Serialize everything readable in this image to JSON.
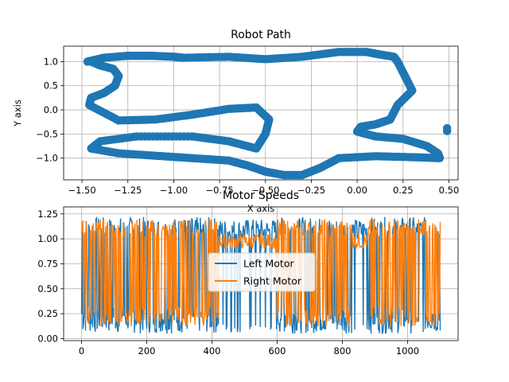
{
  "chart_data": [
    {
      "type": "scatter",
      "title": "Robot Path",
      "xlabel": "X axis",
      "ylabel": "Y axis",
      "xlim": [
        -1.6,
        0.55
      ],
      "ylim": [
        -1.45,
        1.32
      ],
      "xticks": [
        -1.5,
        -1.25,
        -1.0,
        -0.75,
        -0.5,
        -0.25,
        0.0,
        0.25,
        0.5
      ],
      "xtick_labels": [
        "−1.50",
        "−1.25",
        "−1.00",
        "−0.75",
        "−0.50",
        "−0.25",
        "0.00",
        "0.25",
        "0.50"
      ],
      "yticks": [
        -1.0,
        -0.5,
        0.0,
        0.5,
        1.0
      ],
      "ytick_labels": [
        "−1.0",
        "−0.5",
        "0.0",
        "0.5",
        "1.0"
      ],
      "grid": true,
      "color": "#1f77b4",
      "points": {
        "x": [
          -1.47,
          -1.38,
          -1.25,
          -1.12,
          -1.0,
          -0.95,
          -0.7,
          -0.5,
          -0.3,
          -0.1,
          0.05,
          0.12,
          0.2,
          0.22,
          0.26,
          0.3,
          0.22,
          0.18,
          0.1,
          0.02,
          0.0,
          0.1,
          0.25,
          0.38,
          0.44,
          0.45,
          0.3,
          0.1,
          -0.1,
          -0.2,
          -0.3,
          -0.4,
          -0.5,
          -0.6,
          -0.7,
          -0.9,
          -1.1,
          -1.3,
          -1.45,
          -1.4,
          -1.2,
          -0.9,
          -0.7,
          -0.55,
          -0.5,
          -0.48,
          -0.55,
          -0.7,
          -0.9,
          -1.1,
          -1.3,
          -1.46,
          -1.45,
          -1.38,
          -1.32,
          -1.3,
          -1.33,
          -1.4,
          -1.45
        ],
        "y": [
          1.0,
          1.08,
          1.12,
          1.12,
          1.1,
          1.08,
          1.1,
          1.05,
          1.1,
          1.2,
          1.2,
          1.15,
          1.1,
          1.0,
          0.7,
          0.4,
          0.1,
          -0.2,
          -0.3,
          -0.35,
          -0.45,
          -0.55,
          -0.6,
          -0.75,
          -0.9,
          -1.0,
          -0.98,
          -0.96,
          -1.0,
          -1.2,
          -1.35,
          -1.35,
          -1.28,
          -1.15,
          -1.05,
          -1.0,
          -0.95,
          -0.9,
          -0.8,
          -0.65,
          -0.55,
          -0.55,
          -0.65,
          -0.8,
          -0.5,
          -0.2,
          0.05,
          0.02,
          -0.1,
          -0.2,
          -0.22,
          0.1,
          0.25,
          0.35,
          0.5,
          0.7,
          0.85,
          0.92,
          1.0
        ]
      }
    },
    {
      "type": "line",
      "title": "Motor Speeds",
      "xlabel": "",
      "ylabel": "",
      "xlim": [
        -55,
        1155
      ],
      "ylim": [
        -0.02,
        1.32
      ],
      "xticks": [
        0,
        200,
        400,
        600,
        800,
        1000
      ],
      "xtick_labels": [
        "0",
        "200",
        "400",
        "600",
        "800",
        "1000"
      ],
      "yticks": [
        0.0,
        0.25,
        0.5,
        0.75,
        1.0,
        1.25
      ],
      "ytick_labels": [
        "0.00",
        "0.25",
        "0.50",
        "0.75",
        "1.00",
        "1.25"
      ],
      "grid": true,
      "legend": {
        "entries": [
          "Left Motor",
          "Right Motor"
        ],
        "placement": "center"
      },
      "x_range": [
        0,
        1100
      ],
      "series": [
        {
          "name": "Left Motor",
          "color": "#1f77b4",
          "low": 0.05,
          "high": 1.22
        },
        {
          "name": "Right Motor",
          "color": "#ff7f0e",
          "low": 0.12,
          "high": 1.2
        }
      ]
    }
  ]
}
